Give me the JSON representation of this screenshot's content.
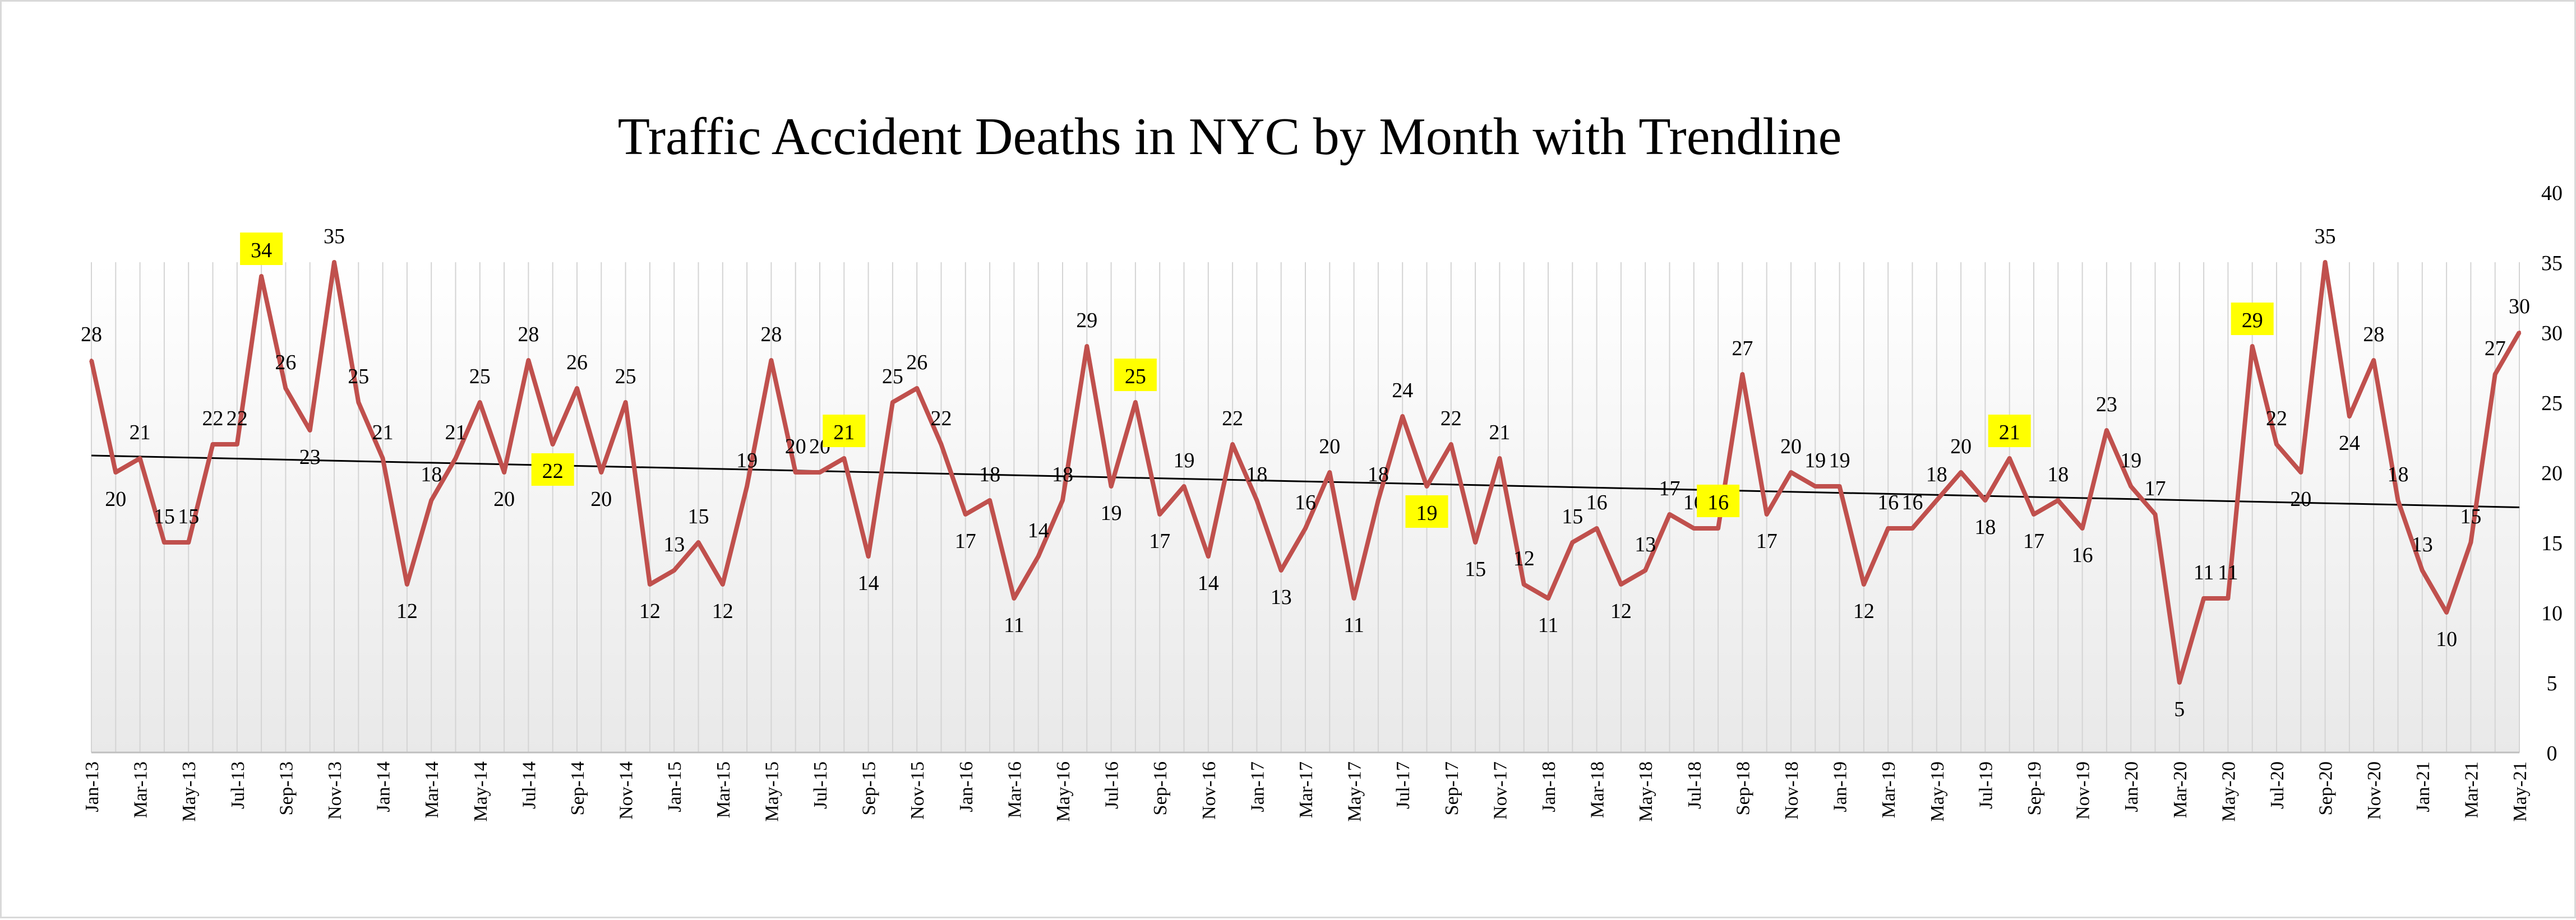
{
  "chart_data": {
    "type": "line",
    "title": "Traffic Accident Deaths in NYC  by Month with  Trendline",
    "xlabel": "",
    "ylabel": "",
    "ylim": [
      0,
      40
    ],
    "yticks": [
      "0",
      "5",
      "10",
      "15",
      "20",
      "25",
      "30",
      "35",
      "40"
    ],
    "y_axis_side": "right",
    "grid": "vertical lines",
    "legend": "none",
    "categories": [
      "Jan-13",
      "Feb-13",
      "Mar-13",
      "Apr-13",
      "May-13",
      "Jun-13",
      "Jul-13",
      "Aug-13",
      "Sep-13",
      "Oct-13",
      "Nov-13",
      "Dec-13",
      "Jan-14",
      "Feb-14",
      "Mar-14",
      "Apr-14",
      "May-14",
      "Jun-14",
      "Jul-14",
      "Aug-14",
      "Sep-14",
      "Oct-14",
      "Nov-14",
      "Dec-14",
      "Jan-15",
      "Feb-15",
      "Mar-15",
      "Apr-15",
      "May-15",
      "Jun-15",
      "Jul-15",
      "Aug-15",
      "Sep-15",
      "Oct-15",
      "Nov-15",
      "Dec-15",
      "Jan-16",
      "Feb-16",
      "Mar-16",
      "Apr-16",
      "May-16",
      "Jun-16",
      "Jul-16",
      "Aug-16",
      "Sep-16",
      "Oct-16",
      "Nov-16",
      "Dec-16",
      "Jan-17",
      "Feb-17",
      "Mar-17",
      "Apr-17",
      "May-17",
      "Jun-17",
      "Jul-17",
      "Aug-17",
      "Sep-17",
      "Oct-17",
      "Nov-17",
      "Dec-17",
      "Jan-18",
      "Feb-18",
      "Mar-18",
      "Apr-18",
      "May-18",
      "Jun-18",
      "Jul-18",
      "Aug-18",
      "Sep-18",
      "Oct-18",
      "Nov-18",
      "Dec-18",
      "Jan-19",
      "Feb-19",
      "Mar-19",
      "Apr-19",
      "May-19",
      "Jun-19",
      "Jul-19",
      "Aug-19",
      "Sep-19",
      "Oct-19",
      "Nov-19",
      "Dec-19",
      "Jan-20",
      "Feb-20",
      "Mar-20",
      "Apr-20",
      "May-20",
      "Jun-20",
      "Jul-20",
      "Aug-20",
      "Sep-20",
      "Oct-20",
      "Nov-20",
      "Dec-20",
      "Jan-21",
      "Feb-21",
      "Mar-21",
      "Apr-21",
      "May-21"
    ],
    "tick_labels": [
      "Jan-13",
      "Mar-13",
      "May-13",
      "Jul-13",
      "Sep-13",
      "Nov-13",
      "Jan-14",
      "Mar-14",
      "May-14",
      "Jul-14",
      "Sep-14",
      "Nov-14",
      "Jan-15",
      "Mar-15",
      "May-15",
      "Jul-15",
      "Sep-15",
      "Nov-15",
      "Jan-16",
      "Mar-16",
      "May-16",
      "Jul-16",
      "Sep-16",
      "Nov-16",
      "Jan-17",
      "Mar-17",
      "May-17",
      "Jul-17",
      "Sep-17",
      "Nov-17",
      "Jan-18",
      "Mar-18",
      "May-18",
      "Jul-18",
      "Sep-18",
      "Nov-18",
      "Jan-19",
      "Mar-19",
      "May-19",
      "Jul-19",
      "Sep-19",
      "Nov-19",
      "Jan-20",
      "Mar-20",
      "May-20",
      "Jul-20",
      "Sep-20",
      "Nov-20",
      "Jan-21",
      "Mar-21",
      "May-21"
    ],
    "series": [
      {
        "values": [
          28,
          20,
          21,
          15,
          15,
          22,
          22,
          34,
          26,
          23,
          35,
          25,
          21,
          12,
          18,
          21,
          25,
          20,
          28,
          22,
          26,
          20,
          25,
          12,
          13,
          15,
          12,
          19,
          28,
          20,
          20,
          21,
          14,
          25,
          26,
          22,
          17,
          18,
          11,
          14,
          18,
          29,
          19,
          25,
          17,
          19,
          14,
          22,
          18,
          13,
          16,
          20,
          11,
          18,
          24,
          19,
          22,
          15,
          21,
          12,
          11,
          15,
          16,
          12,
          13,
          17,
          16,
          16,
          27,
          17,
          20,
          19,
          19,
          12,
          16,
          16,
          18,
          20,
          18,
          21,
          17,
          18,
          16,
          23,
          19,
          17,
          5,
          11,
          11,
          29,
          22,
          20,
          35,
          24,
          28,
          18,
          13,
          10,
          15,
          27,
          30
        ],
        "color": "#c0504d"
      }
    ],
    "trendline": {
      "start": 21.2,
      "end": 17.5,
      "color": "#000000",
      "type": "linear"
    },
    "highlighted_labels": [
      {
        "month": "Aug-13",
        "value": 34
      },
      {
        "month": "Aug-14",
        "value": 22
      },
      {
        "month": "Aug-15",
        "value": 21
      },
      {
        "month": "Aug-16",
        "value": 25
      },
      {
        "month": "Aug-17",
        "value": 19
      },
      {
        "month": "Aug-18",
        "value": 16
      },
      {
        "month": "Aug-19",
        "value": 21
      },
      {
        "month": "Jun-20",
        "value": 29
      }
    ],
    "highlight_color": "#ffff00",
    "plot_background": "gradient #f2f2f2 to #ffffff"
  }
}
